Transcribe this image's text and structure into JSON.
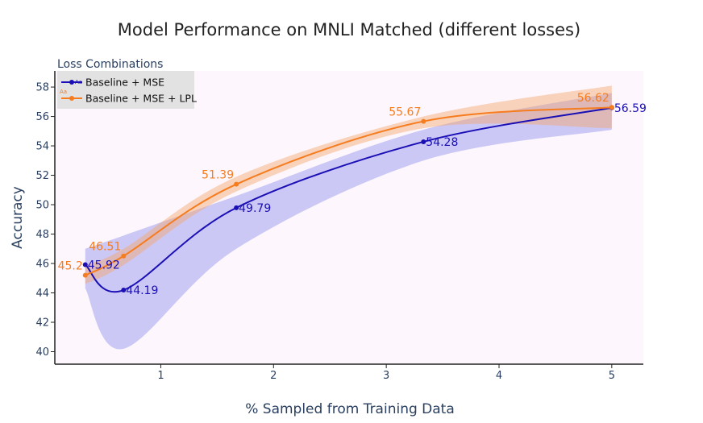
{
  "chart_data": {
    "type": "line",
    "title": "Model Performance on MNLI Matched (different losses)",
    "xlabel": "% Sampled from Training Data",
    "ylabel": "Accuracy",
    "xlim": [
      0.06,
      5.28
    ],
    "ylim": [
      39.15,
      59.1
    ],
    "xticks": [
      1,
      2,
      3,
      4,
      5
    ],
    "yticks": [
      40,
      42,
      44,
      46,
      48,
      50,
      52,
      54,
      56,
      58
    ],
    "grid": false,
    "legend": {
      "title": "Loss Combinations",
      "position": "top-left"
    },
    "x": [
      0.33,
      0.67,
      1.67,
      3.33,
      5.0
    ],
    "series": [
      {
        "name": "Baseline + MSE",
        "color": "#1a0fb5",
        "band_color": "#7b7be8",
        "marker_glyph": "Aa",
        "values": [
          45.92,
          44.19,
          49.79,
          54.28,
          56.59
        ],
        "labels": [
          "45.92",
          "44.19",
          "49.79",
          "54.28",
          "56.59"
        ],
        "ci_upper": [
          47.0,
          47.9,
          50.6,
          55.1,
          57.6
        ],
        "ci_lower": [
          44.3,
          40.2,
          47.0,
          53.0,
          55.1
        ]
      },
      {
        "name": "Baseline + MSE + LPL",
        "color": "#f57c1f",
        "band_color": "#f5a36b",
        "marker_glyph": "Aa",
        "values": [
          45.2,
          46.51,
          51.39,
          55.67,
          56.62
        ],
        "labels": [
          "45.2",
          "46.51",
          "51.39",
          "55.67",
          "56.62"
        ],
        "ci_upper": [
          45.9,
          47.0,
          51.9,
          56.0,
          58.1
        ],
        "ci_lower": [
          44.6,
          45.9,
          50.9,
          55.2,
          55.2
        ]
      }
    ]
  }
}
